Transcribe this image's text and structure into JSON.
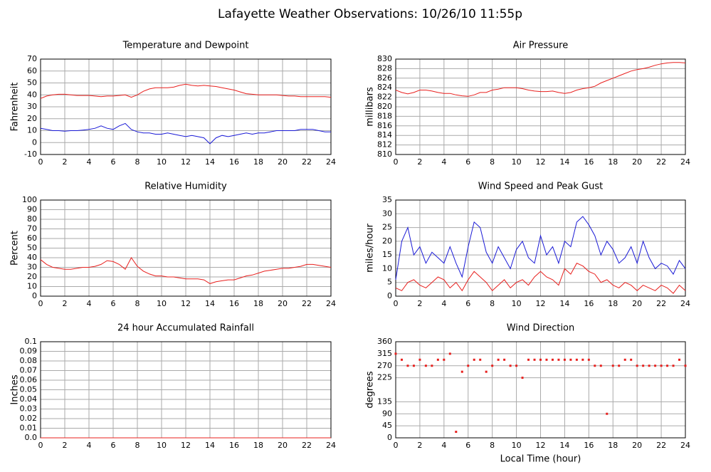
{
  "title": "Lafayette Weather Observations: 10/26/10 11:55p",
  "chart_data": [
    {
      "type": "line",
      "title": "Temperature and Dewpoint",
      "ylabel": "Fahrenheit",
      "x": [
        0,
        0.5,
        1,
        1.5,
        2,
        2.5,
        3,
        3.5,
        4,
        4.5,
        5,
        5.5,
        6,
        6.5,
        7,
        7.5,
        8,
        8.5,
        9,
        9.5,
        10,
        10.5,
        11,
        11.5,
        12,
        12.5,
        13,
        13.5,
        14,
        14.5,
        15,
        15.5,
        16,
        16.5,
        17,
        17.5,
        18,
        18.5,
        19,
        19.5,
        20,
        20.5,
        21,
        21.5,
        22,
        22.5,
        23,
        23.5,
        24
      ],
      "series": [
        {
          "color": "#e8201e",
          "values": [
            37,
            39,
            40,
            40.5,
            40.5,
            40,
            39.5,
            39.5,
            39.5,
            39,
            38.5,
            39,
            39,
            39.5,
            40,
            38,
            40,
            43,
            45,
            46,
            46,
            46,
            46.5,
            48,
            49,
            48,
            47.5,
            48,
            47.5,
            47,
            46,
            45,
            44,
            42.5,
            41,
            40.5,
            40,
            40,
            40,
            40,
            39.5,
            39,
            39,
            38.5,
            38.5,
            38.5,
            38.5,
            38.5,
            38
          ]
        },
        {
          "color": "#1a1ad6",
          "values": [
            12,
            11,
            10,
            10,
            9.5,
            10,
            10,
            10.5,
            11,
            12,
            14,
            12,
            11,
            14,
            16,
            11,
            9,
            8,
            8,
            7,
            7,
            8,
            7,
            6,
            5,
            6,
            5,
            4,
            -1,
            4,
            6,
            5,
            6,
            7,
            8,
            7,
            8,
            8,
            9,
            10,
            10,
            10,
            10,
            11,
            11,
            11,
            10,
            9,
            9
          ]
        }
      ],
      "xlim": [
        0,
        24
      ],
      "ylim": [
        -10,
        70
      ],
      "xticks": [
        0,
        2,
        4,
        6,
        8,
        10,
        12,
        14,
        16,
        18,
        20,
        22,
        24
      ],
      "yticks": [
        -10,
        0,
        10,
        20,
        30,
        40,
        50,
        60,
        70
      ],
      "grid": true
    },
    {
      "type": "line",
      "title": "Air Pressure",
      "ylabel": "millibars",
      "x": [
        0,
        0.5,
        1,
        1.5,
        2,
        2.5,
        3,
        3.5,
        4,
        4.5,
        5,
        5.5,
        6,
        6.5,
        7,
        7.5,
        8,
        8.5,
        9,
        9.5,
        10,
        10.5,
        11,
        11.5,
        12,
        12.5,
        13,
        13.5,
        14,
        14.5,
        15,
        15.5,
        16,
        16.5,
        17,
        17.5,
        18,
        18.5,
        19,
        19.5,
        20,
        20.5,
        21,
        21.5,
        22,
        22.5,
        23,
        23.5,
        24
      ],
      "series": [
        {
          "color": "#e8201e",
          "values": [
            823.5,
            823,
            822.7,
            823,
            823.5,
            823.5,
            823.3,
            823,
            822.8,
            822.8,
            822.5,
            822.3,
            822.2,
            822.5,
            823,
            823,
            823.5,
            823.7,
            824,
            824,
            824,
            823.8,
            823.5,
            823.3,
            823.2,
            823.2,
            823.3,
            823,
            822.8,
            823,
            823.5,
            823.8,
            824,
            824.3,
            825,
            825.5,
            826,
            826.5,
            827,
            827.5,
            827.8,
            828,
            828.3,
            828.7,
            829,
            829.2,
            829.3,
            829.3,
            829.2
          ]
        }
      ],
      "xlim": [
        0,
        24
      ],
      "ylim": [
        810,
        830
      ],
      "xticks": [
        0,
        2,
        4,
        6,
        8,
        10,
        12,
        14,
        16,
        18,
        20,
        22,
        24
      ],
      "yticks": [
        810,
        812,
        814,
        816,
        818,
        820,
        822,
        824,
        826,
        828,
        830
      ],
      "grid": true
    },
    {
      "type": "line",
      "title": "Relative Humidity",
      "ylabel": "Percent",
      "x": [
        0,
        0.5,
        1,
        1.5,
        2,
        2.5,
        3,
        3.5,
        4,
        4.5,
        5,
        5.5,
        6,
        6.5,
        7,
        7.5,
        8,
        8.5,
        9,
        9.5,
        10,
        10.5,
        11,
        11.5,
        12,
        12.5,
        13,
        13.5,
        14,
        14.5,
        15,
        15.5,
        16,
        16.5,
        17,
        17.5,
        18,
        18.5,
        19,
        19.5,
        20,
        20.5,
        21,
        21.5,
        22,
        22.5,
        23,
        23.5,
        24
      ],
      "series": [
        {
          "color": "#e8201e",
          "values": [
            38,
            33,
            30,
            29,
            28,
            28,
            29,
            30,
            30,
            31,
            33,
            37,
            36,
            33,
            28,
            40,
            31,
            26,
            23,
            21,
            21,
            20,
            20,
            19,
            18,
            18,
            18,
            17,
            13,
            15,
            16,
            17,
            17,
            19,
            21,
            22,
            24,
            26,
            27,
            28,
            29,
            29,
            30,
            31,
            33,
            33,
            32,
            31,
            30
          ]
        }
      ],
      "xlim": [
        0,
        24
      ],
      "ylim": [
        0,
        100
      ],
      "xticks": [
        0,
        2,
        4,
        6,
        8,
        10,
        12,
        14,
        16,
        18,
        20,
        22,
        24
      ],
      "yticks": [
        0,
        10,
        20,
        30,
        40,
        50,
        60,
        70,
        80,
        90,
        100
      ],
      "grid": true
    },
    {
      "type": "line",
      "title": "Wind Speed and Peak Gust",
      "ylabel": "miles/hour",
      "x": [
        0,
        0.5,
        1,
        1.5,
        2,
        2.5,
        3,
        3.5,
        4,
        4.5,
        5,
        5.5,
        6,
        6.5,
        7,
        7.5,
        8,
        8.5,
        9,
        9.5,
        10,
        10.5,
        11,
        11.5,
        12,
        12.5,
        13,
        13.5,
        14,
        14.5,
        15,
        15.5,
        16,
        16.5,
        17,
        17.5,
        18,
        18.5,
        19,
        19.5,
        20,
        20.5,
        21,
        21.5,
        22,
        22.5,
        23,
        23.5,
        24
      ],
      "series": [
        {
          "color": "#1a1ad6",
          "values": [
            6,
            20,
            25,
            15,
            18,
            12,
            16,
            14,
            12,
            18,
            12,
            7,
            18,
            27,
            25,
            16,
            12,
            18,
            14,
            10,
            17,
            20,
            14,
            12,
            22,
            15,
            18,
            12,
            20,
            18,
            27,
            29,
            26,
            22,
            15,
            20,
            17,
            12,
            14,
            18,
            12,
            20,
            14,
            10,
            12,
            11,
            8,
            13,
            10
          ]
        },
        {
          "color": "#e8201e",
          "values": [
            3,
            2,
            5,
            6,
            4,
            3,
            5,
            7,
            6,
            3,
            5,
            2,
            6,
            9,
            7,
            5,
            2,
            4,
            6,
            3,
            5,
            6,
            4,
            7,
            9,
            7,
            6,
            4,
            10,
            8,
            12,
            11,
            9,
            8,
            5,
            6,
            4,
            3,
            5,
            4,
            2,
            4,
            3,
            2,
            4,
            3,
            1,
            4,
            2
          ]
        }
      ],
      "xlim": [
        0,
        24
      ],
      "ylim": [
        0,
        35
      ],
      "xticks": [
        0,
        2,
        4,
        6,
        8,
        10,
        12,
        14,
        16,
        18,
        20,
        22,
        24
      ],
      "yticks": [
        0,
        5,
        10,
        15,
        20,
        25,
        30,
        35
      ],
      "grid": true
    },
    {
      "type": "line",
      "title": "24 hour Accumulated Rainfall",
      "ylabel": "Inches",
      "x": [
        0,
        24
      ],
      "series": [
        {
          "color": "#e8201e",
          "values": [
            0,
            0
          ]
        }
      ],
      "xlim": [
        0,
        24
      ],
      "ylim": [
        0,
        0.1
      ],
      "xticks": [
        0,
        2,
        4,
        6,
        8,
        10,
        12,
        14,
        16,
        18,
        20,
        22,
        24
      ],
      "yticks": [
        {
          "value": 0,
          "label": "0.0"
        },
        0.01,
        0.02,
        0.03,
        0.04,
        0.05,
        0.06,
        0.07,
        0.08,
        0.09,
        0.1
      ],
      "grid": true
    },
    {
      "type": "scatter",
      "title": "Wind Direction",
      "ylabel": "degrees",
      "xlabel": "Local Time (hour)",
      "x": [
        0,
        0.5,
        1,
        1.5,
        2,
        2.5,
        3,
        3.5,
        4,
        4.5,
        5,
        5.5,
        6,
        6.5,
        7,
        7.5,
        8,
        8.5,
        9,
        9.5,
        10,
        10.5,
        11,
        11.5,
        12,
        12.5,
        13,
        13.5,
        14,
        14.5,
        15,
        15.5,
        16,
        16.5,
        17,
        17.5,
        18,
        18.5,
        19,
        19.5,
        20,
        20.5,
        21,
        21.5,
        22,
        22.5,
        23,
        23.5,
        24
      ],
      "series": [
        {
          "color": "#e8201e",
          "values": [
            315,
            292.5,
            270,
            270,
            292.5,
            270,
            270,
            292.5,
            292.5,
            315,
            22.5,
            247.5,
            270,
            292.5,
            292.5,
            247.5,
            270,
            292.5,
            292.5,
            270,
            270,
            225,
            292.5,
            292.5,
            292.5,
            292.5,
            292.5,
            292.5,
            292.5,
            292.5,
            292.5,
            292.5,
            292.5,
            270,
            270,
            90,
            270,
            270,
            292.5,
            292.5,
            270,
            270,
            270,
            270,
            270,
            270,
            270,
            292.5,
            270
          ]
        }
      ],
      "xlim": [
        0,
        24
      ],
      "ylim": [
        0,
        360
      ],
      "xticks": [
        0,
        2,
        4,
        6,
        8,
        10,
        12,
        14,
        16,
        18,
        20,
        22,
        24
      ],
      "yticks": [
        0,
        45,
        90,
        135,
        225,
        270,
        315,
        360
      ],
      "grid": true
    }
  ]
}
